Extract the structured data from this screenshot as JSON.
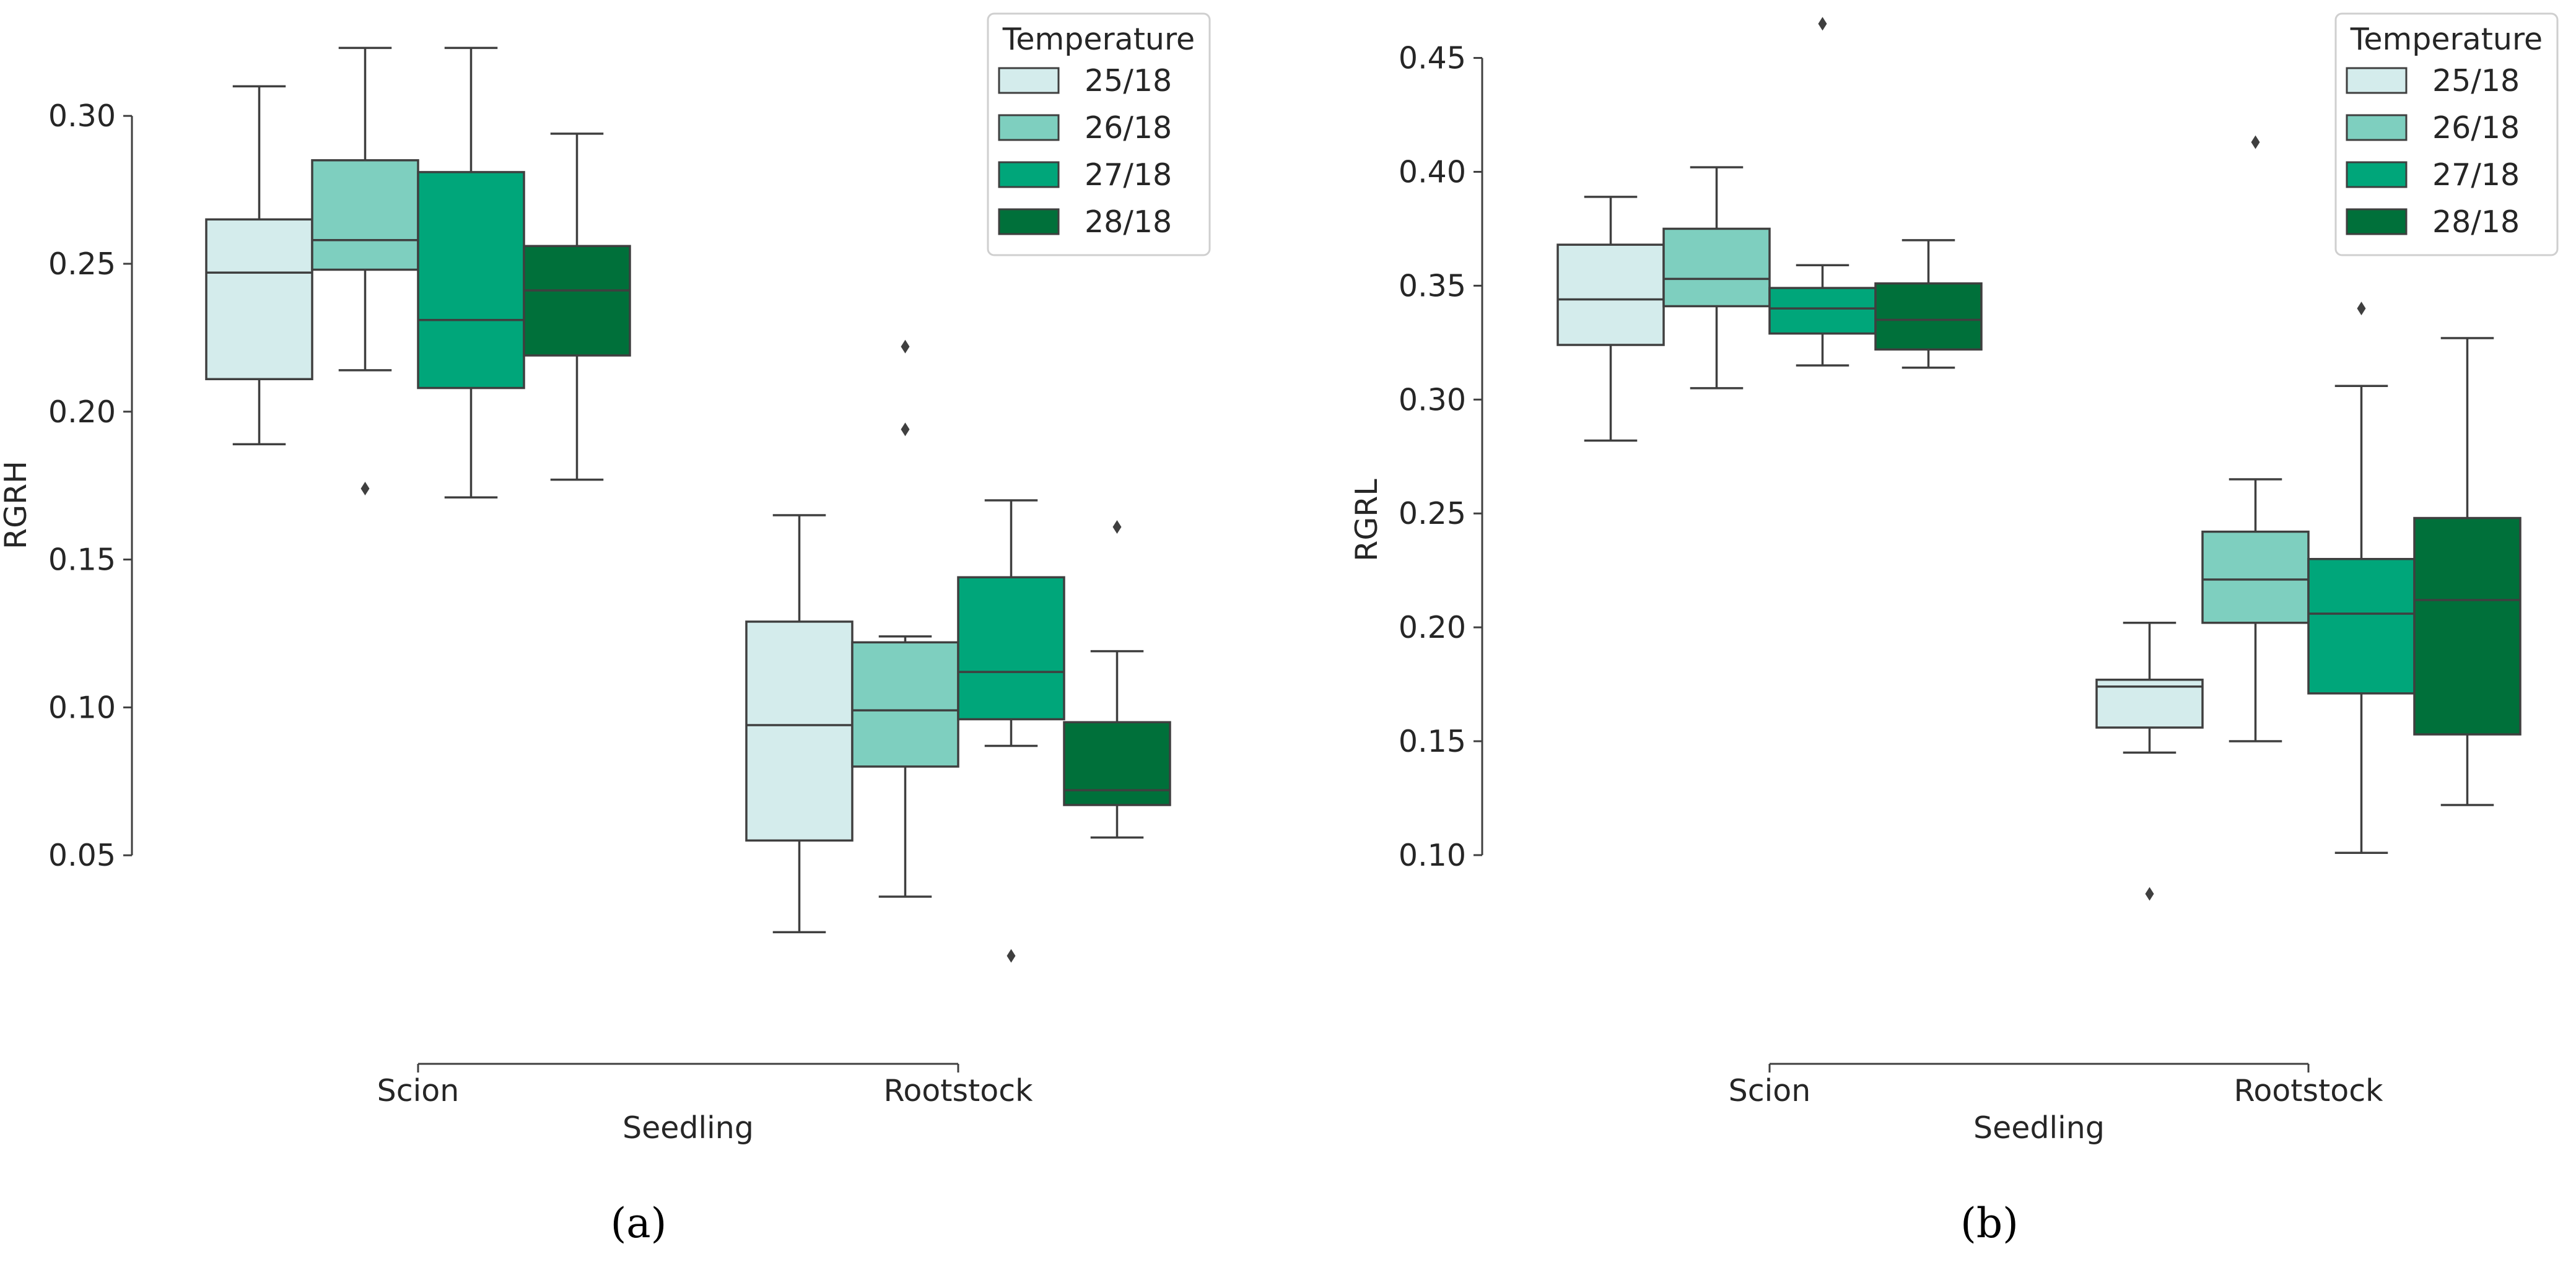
{
  "chart_data": [
    {
      "type": "box",
      "caption": "(a)",
      "caption_letter": "a",
      "xlabel": "Seedling",
      "ylabel": "RGRH",
      "categories": [
        "Scion",
        "Rootstock"
      ],
      "yticks": [
        "0.05",
        "0.10",
        "0.15",
        "0.20",
        "0.25",
        "0.30"
      ],
      "ylim": [
        0.0,
        0.335
      ],
      "legend": {
        "title": "Temperature",
        "placement": "top-right"
      },
      "series": [
        {
          "name": "25/18",
          "color": "#d4ecec",
          "boxes": [
            {
              "category": "Scion",
              "whisker_low": 0.189,
              "q1": 0.211,
              "median": 0.247,
              "q3": 0.265,
              "whisker_high": 0.31,
              "outliers": []
            },
            {
              "category": "Rootstock",
              "whisker_low": 0.024,
              "q1": 0.055,
              "median": 0.094,
              "q3": 0.129,
              "whisker_high": 0.165,
              "outliers": []
            }
          ]
        },
        {
          "name": "26/18",
          "color": "#7ecfbf",
          "boxes": [
            {
              "category": "Scion",
              "whisker_low": 0.214,
              "q1": 0.248,
              "median": 0.258,
              "q3": 0.285,
              "whisker_high": 0.323,
              "outliers": [
                0.174
              ]
            },
            {
              "category": "Rootstock",
              "whisker_low": 0.036,
              "q1": 0.08,
              "median": 0.099,
              "q3": 0.122,
              "whisker_high": 0.124,
              "outliers": [
                0.194,
                0.222
              ]
            }
          ]
        },
        {
          "name": "27/18",
          "color": "#00a67a",
          "boxes": [
            {
              "category": "Scion",
              "whisker_low": 0.171,
              "q1": 0.208,
              "median": 0.231,
              "q3": 0.281,
              "whisker_high": 0.323,
              "outliers": []
            },
            {
              "category": "Rootstock",
              "whisker_low": 0.087,
              "q1": 0.096,
              "median": 0.112,
              "q3": 0.144,
              "whisker_high": 0.17,
              "outliers": [
                0.016
              ]
            }
          ]
        },
        {
          "name": "28/18",
          "color": "#00703a",
          "boxes": [
            {
              "category": "Scion",
              "whisker_low": 0.177,
              "q1": 0.219,
              "median": 0.241,
              "q3": 0.256,
              "whisker_high": 0.294,
              "outliers": []
            },
            {
              "category": "Rootstock",
              "whisker_low": 0.056,
              "q1": 0.067,
              "median": 0.072,
              "q3": 0.095,
              "whisker_high": 0.119,
              "outliers": [
                0.161
              ]
            }
          ]
        }
      ]
    },
    {
      "type": "box",
      "caption": "(b)",
      "caption_letter": "b",
      "xlabel": "Seedling",
      "ylabel": "RGRL",
      "categories": [
        "Scion",
        "Rootstock"
      ],
      "yticks": [
        "0.10",
        "0.15",
        "0.20",
        "0.25",
        "0.30",
        "0.35",
        "0.40",
        "0.45"
      ],
      "ylim": [
        0.035,
        0.47
      ],
      "legend": {
        "title": "Temperature",
        "placement": "top-right"
      },
      "series": [
        {
          "name": "25/18",
          "color": "#d4ecec",
          "boxes": [
            {
              "category": "Scion",
              "whisker_low": 0.282,
              "q1": 0.324,
              "median": 0.344,
              "q3": 0.368,
              "whisker_high": 0.389,
              "outliers": []
            },
            {
              "category": "Rootstock",
              "whisker_low": 0.145,
              "q1": 0.156,
              "median": 0.174,
              "q3": 0.177,
              "whisker_high": 0.202,
              "outliers": [
                0.083
              ]
            }
          ]
        },
        {
          "name": "26/18",
          "color": "#7ecfbf",
          "boxes": [
            {
              "category": "Scion",
              "whisker_low": 0.305,
              "q1": 0.341,
              "median": 0.353,
              "q3": 0.375,
              "whisker_high": 0.402,
              "outliers": []
            },
            {
              "category": "Rootstock",
              "whisker_low": 0.15,
              "q1": 0.202,
              "median": 0.221,
              "q3": 0.242,
              "whisker_high": 0.265,
              "outliers": [
                0.413
              ]
            }
          ]
        },
        {
          "name": "27/18",
          "color": "#00a67a",
          "boxes": [
            {
              "category": "Scion",
              "whisker_low": 0.315,
              "q1": 0.329,
              "median": 0.34,
              "q3": 0.349,
              "whisker_high": 0.359,
              "outliers": [
                0.465
              ]
            },
            {
              "category": "Rootstock",
              "whisker_low": 0.101,
              "q1": 0.171,
              "median": 0.206,
              "q3": 0.23,
              "whisker_high": 0.306,
              "outliers": [
                0.34
              ]
            }
          ]
        },
        {
          "name": "28/18",
          "color": "#00703a",
          "boxes": [
            {
              "category": "Scion",
              "whisker_low": 0.314,
              "q1": 0.322,
              "median": 0.335,
              "q3": 0.351,
              "whisker_high": 0.37,
              "outliers": []
            },
            {
              "category": "Rootstock",
              "whisker_low": 0.122,
              "q1": 0.153,
              "median": 0.212,
              "q3": 0.248,
              "whisker_high": 0.327,
              "outliers": []
            }
          ]
        }
      ]
    }
  ]
}
